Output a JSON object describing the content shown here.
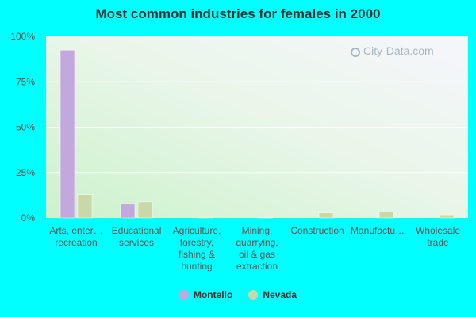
{
  "chart_data": {
    "type": "bar",
    "title": "Most common industries for females in 2000",
    "categories": [
      [
        "Arts, enter…",
        "recreation"
      ],
      [
        "Educational",
        "services"
      ],
      [
        "Agriculture,",
        "forestry,",
        "fishing &",
        "hunting"
      ],
      [
        "Mining,",
        "quarrying,",
        "oil & gas",
        "extraction"
      ],
      [
        "Construction"
      ],
      [
        "Manufactu…"
      ],
      [
        "Wholesale",
        "trade"
      ]
    ],
    "series": [
      {
        "name": "Montello",
        "color": "#c3a8dd",
        "values": [
          92.5,
          7.5,
          0,
          0,
          0,
          0,
          0
        ]
      },
      {
        "name": "Nevada",
        "color": "#c8d8a8",
        "values": [
          12.8,
          8.8,
          0.4,
          0.3,
          2.8,
          3.2,
          1.7
        ]
      }
    ],
    "ylim": [
      0,
      100
    ],
    "yticks": [
      "0%",
      "25%",
      "50%",
      "75%",
      "100%"
    ],
    "ytick_values": [
      0,
      25,
      50,
      75,
      100
    ],
    "grid": true,
    "legend_position": "bottom"
  },
  "watermark": "City-Data.com"
}
